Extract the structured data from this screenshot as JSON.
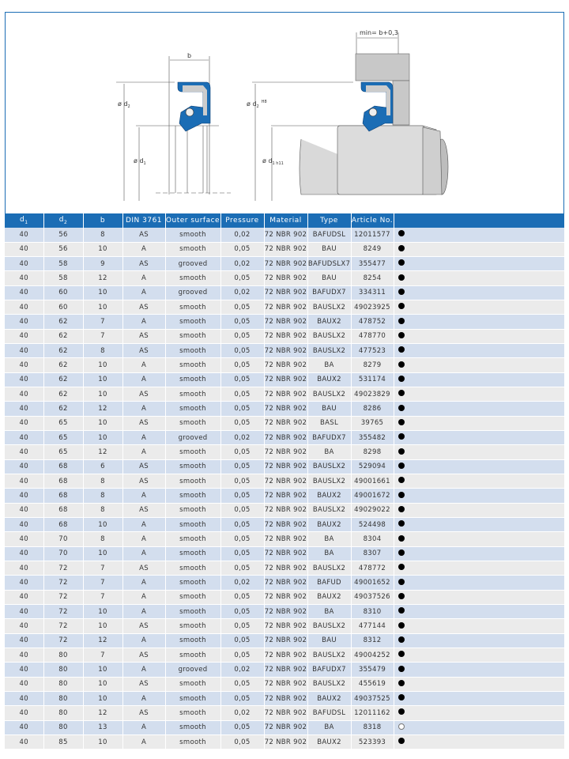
{
  "drawing": {
    "b_label": "b",
    "min_label": "min= b+0,3",
    "d2_label": "ø d",
    "d2_sub": "2",
    "d1_label": "ø d",
    "d1_sub": "1",
    "d2h_sup": "H8",
    "d1h_sub": "1 h11",
    "seal_color": "#1b6db5"
  },
  "table": {
    "headers": [
      "d",
      "d",
      "b",
      "DIN 3761",
      "Outer surface",
      "Pressure",
      "Material",
      "Type",
      "Article No.",
      ""
    ],
    "header_subs": [
      "1",
      "2"
    ],
    "rows": [
      [
        "40",
        "56",
        "8",
        "AS",
        "smooth",
        "0,02",
        "72 NBR 902",
        "BAFUDSL",
        "12011577",
        "filled"
      ],
      [
        "40",
        "56",
        "10",
        "A",
        "smooth",
        "0,05",
        "72 NBR 902",
        "BAU",
        "8249",
        "filled"
      ],
      [
        "40",
        "58",
        "9",
        "AS",
        "grooved",
        "0,02",
        "72 NBR 902",
        "BAFUDSLX7",
        "355477",
        "filled"
      ],
      [
        "40",
        "58",
        "12",
        "A",
        "smooth",
        "0,05",
        "72 NBR 902",
        "BAU",
        "8254",
        "filled"
      ],
      [
        "40",
        "60",
        "10",
        "A",
        "grooved",
        "0,02",
        "72 NBR 902",
        "BAFUDX7",
        "334311",
        "filled"
      ],
      [
        "40",
        "60",
        "10",
        "AS",
        "smooth",
        "0,05",
        "72 NBR 902",
        "BAUSLX2",
        "49023925",
        "filled"
      ],
      [
        "40",
        "62",
        "7",
        "A",
        "smooth",
        "0,05",
        "72 NBR 902",
        "BAUX2",
        "478752",
        "filled"
      ],
      [
        "40",
        "62",
        "7",
        "AS",
        "smooth",
        "0,05",
        "72 NBR 902",
        "BAUSLX2",
        "478770",
        "filled"
      ],
      [
        "40",
        "62",
        "8",
        "AS",
        "smooth",
        "0,05",
        "72 NBR 902",
        "BAUSLX2",
        "477523",
        "filled"
      ],
      [
        "40",
        "62",
        "10",
        "A",
        "smooth",
        "0,05",
        "72 NBR 902",
        "BA",
        "8279",
        "filled"
      ],
      [
        "40",
        "62",
        "10",
        "A",
        "smooth",
        "0,05",
        "72 NBR 902",
        "BAUX2",
        "531174",
        "filled"
      ],
      [
        "40",
        "62",
        "10",
        "AS",
        "smooth",
        "0,05",
        "72 NBR 902",
        "BAUSLX2",
        "49023829",
        "filled"
      ],
      [
        "40",
        "62",
        "12",
        "A",
        "smooth",
        "0,05",
        "72 NBR 902",
        "BAU",
        "8286",
        "filled"
      ],
      [
        "40",
        "65",
        "10",
        "AS",
        "smooth",
        "0,05",
        "72 NBR 902",
        "BASL",
        "39765",
        "filled"
      ],
      [
        "40",
        "65",
        "10",
        "A",
        "grooved",
        "0,02",
        "72 NBR 902",
        "BAFUDX7",
        "355482",
        "filled"
      ],
      [
        "40",
        "65",
        "12",
        "A",
        "smooth",
        "0,05",
        "72 NBR 902",
        "BA",
        "8298",
        "filled"
      ],
      [
        "40",
        "68",
        "6",
        "AS",
        "smooth",
        "0,05",
        "72 NBR 902",
        "BAUSLX2",
        "529094",
        "filled"
      ],
      [
        "40",
        "68",
        "8",
        "AS",
        "smooth",
        "0,05",
        "72 NBR 902",
        "BAUSLX2",
        "49001661",
        "filled"
      ],
      [
        "40",
        "68",
        "8",
        "A",
        "smooth",
        "0,05",
        "72 NBR 902",
        "BAUX2",
        "49001672",
        "filled"
      ],
      [
        "40",
        "68",
        "8",
        "AS",
        "smooth",
        "0,05",
        "72 NBR 902",
        "BAUSLX2",
        "49029022",
        "filled"
      ],
      [
        "40",
        "68",
        "10",
        "A",
        "smooth",
        "0,05",
        "72 NBR 902",
        "BAUX2",
        "524498",
        "filled"
      ],
      [
        "40",
        "70",
        "8",
        "A",
        "smooth",
        "0,05",
        "72 NBR 902",
        "BA",
        "8304",
        "filled"
      ],
      [
        "40",
        "70",
        "10",
        "A",
        "smooth",
        "0,05",
        "72 NBR 902",
        "BA",
        "8307",
        "filled"
      ],
      [
        "40",
        "72",
        "7",
        "AS",
        "smooth",
        "0,05",
        "72 NBR 902",
        "BAUSLX2",
        "478772",
        "filled"
      ],
      [
        "40",
        "72",
        "7",
        "A",
        "smooth",
        "0,02",
        "72 NBR 902",
        "BAFUD",
        "49001652",
        "filled"
      ],
      [
        "40",
        "72",
        "7",
        "A",
        "smooth",
        "0,05",
        "72 NBR 902",
        "BAUX2",
        "49037526",
        "filled"
      ],
      [
        "40",
        "72",
        "10",
        "A",
        "smooth",
        "0,05",
        "72 NBR 902",
        "BA",
        "8310",
        "filled"
      ],
      [
        "40",
        "72",
        "10",
        "AS",
        "smooth",
        "0,05",
        "72 NBR 902",
        "BAUSLX2",
        "477144",
        "filled"
      ],
      [
        "40",
        "72",
        "12",
        "A",
        "smooth",
        "0,05",
        "72 NBR 902",
        "BAU",
        "8312",
        "filled"
      ],
      [
        "40",
        "80",
        "7",
        "AS",
        "smooth",
        "0,05",
        "72 NBR 902",
        "BAUSLX2",
        "49004252",
        "filled"
      ],
      [
        "40",
        "80",
        "10",
        "A",
        "grooved",
        "0,02",
        "72 NBR 902",
        "BAFUDX7",
        "355479",
        "filled"
      ],
      [
        "40",
        "80",
        "10",
        "AS",
        "smooth",
        "0,05",
        "72 NBR 902",
        "BAUSLX2",
        "455619",
        "filled"
      ],
      [
        "40",
        "80",
        "10",
        "A",
        "smooth",
        "0,05",
        "72 NBR 902",
        "BAUX2",
        "49037525",
        "filled"
      ],
      [
        "40",
        "80",
        "12",
        "AS",
        "smooth",
        "0,02",
        "72 NBR 902",
        "BAFUDSL",
        "12011162",
        "filled"
      ],
      [
        "40",
        "80",
        "13",
        "A",
        "smooth",
        "0,05",
        "72 NBR 902",
        "BA",
        "8318",
        "open"
      ],
      [
        "40",
        "85",
        "10",
        "A",
        "smooth",
        "0,05",
        "72 NBR 902",
        "BAUX2",
        "523393",
        "filled"
      ]
    ],
    "colors": {
      "header": "#1b6db5",
      "row_blue": "#d3deee",
      "row_grey": "#ebebeb"
    }
  }
}
